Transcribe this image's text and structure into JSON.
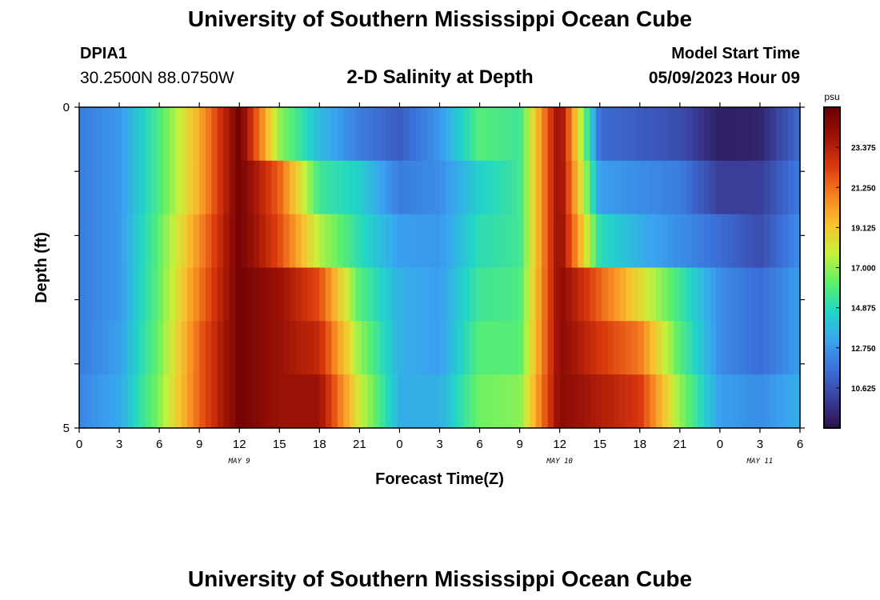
{
  "header": {
    "title": "University of Southern Mississippi Ocean Cube",
    "station_id": "DPIA1",
    "station_coords": "30.2500N  88.0750W",
    "plot_title": "2-D Salinity at Depth",
    "model_start_label": "Model Start Time",
    "model_start_value": "05/09/2023 Hour 09"
  },
  "footer": {
    "title": "University of Southern Mississippi Ocean Cube"
  },
  "colors": {
    "colormap": [
      "#2b0f4a",
      "#3a3f9a",
      "#3b6fd8",
      "#3aa3f0",
      "#22d6c6",
      "#5ef06a",
      "#c8f03a",
      "#f9c12e",
      "#f57f20",
      "#d9380d",
      "#9c1306",
      "#6a0004"
    ],
    "colormap_range": [
      8.5,
      25.5
    ]
  },
  "chart_data": {
    "type": "heatmap",
    "title": "2-D Salinity at Depth",
    "xlabel": "Forecast Time(Z)",
    "ylabel": "Depth (ft)",
    "unit": "psu",
    "x_ticks": [
      "0",
      "3",
      "6",
      "9",
      "12",
      "15",
      "18",
      "21",
      "0",
      "3",
      "6",
      "9",
      "12",
      "15",
      "18",
      "21",
      "0",
      "3",
      "6"
    ],
    "y_ticks": [
      "0",
      "5"
    ],
    "date_labels": [
      {
        "label": "MAY 9",
        "hour": 12
      },
      {
        "label": "MAY 10",
        "hour": 36
      },
      {
        "label": "MAY 11",
        "hour": 51
      }
    ],
    "xlim": [
      0,
      54
    ],
    "ylim": [
      0,
      5
    ],
    "colorbar_ticks": [
      "23.375",
      "21.250",
      "19.125",
      "17.000",
      "14.875",
      "12.750",
      "10.625"
    ],
    "depth_levels": [
      0,
      1,
      2,
      3,
      4,
      5
    ],
    "time_hours": [
      0,
      3,
      6,
      9,
      12,
      15,
      18,
      21,
      24,
      27,
      30,
      33,
      36,
      39,
      42,
      45,
      48,
      51,
      54
    ],
    "values": [
      [
        12.0,
        12.8,
        15.8,
        19.8,
        25.2,
        17.0,
        13.8,
        12.0,
        11.0,
        12.8,
        16.0,
        15.5,
        24.5,
        11.5,
        11.0,
        10.5,
        9.0,
        9.2,
        11.5
      ],
      [
        12.0,
        12.8,
        15.8,
        19.8,
        25.2,
        21.5,
        15.5,
        14.5,
        12.0,
        12.5,
        14.5,
        15.5,
        24.5,
        13.0,
        12.5,
        12.0,
        10.0,
        10.0,
        12.0
      ],
      [
        12.0,
        12.8,
        16.2,
        20.5,
        25.2,
        22.0,
        17.5,
        15.0,
        13.0,
        12.8,
        15.0,
        15.5,
        24.5,
        15.0,
        13.5,
        12.5,
        11.5,
        10.5,
        12.5
      ],
      [
        12.0,
        12.8,
        16.3,
        21.0,
        25.2,
        24.0,
        22.0,
        16.0,
        13.5,
        13.0,
        15.5,
        15.8,
        24.5,
        21.5,
        18.5,
        15.5,
        12.5,
        11.5,
        13.0
      ],
      [
        12.0,
        13.0,
        16.5,
        21.5,
        25.2,
        24.0,
        23.0,
        17.0,
        13.5,
        13.0,
        16.0,
        16.0,
        24.5,
        22.5,
        21.0,
        16.0,
        12.5,
        11.5,
        13.0
      ],
      [
        12.3,
        13.3,
        16.8,
        21.5,
        25.2,
        24.0,
        24.0,
        18.0,
        13.5,
        13.5,
        16.5,
        16.8,
        24.5,
        23.5,
        22.5,
        17.0,
        13.0,
        12.5,
        13.5
      ]
    ]
  }
}
